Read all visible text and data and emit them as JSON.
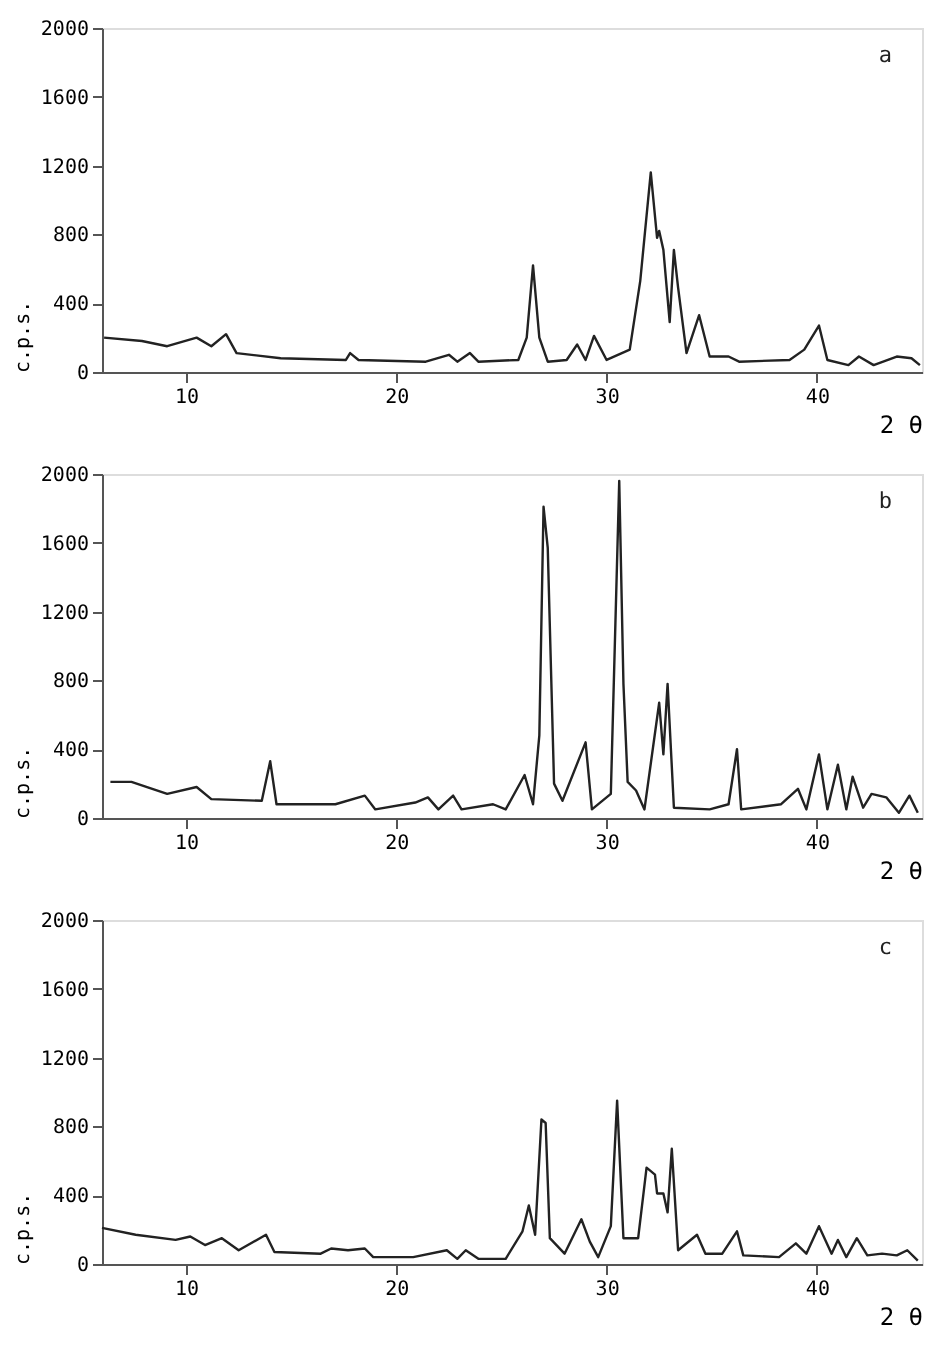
{
  "chart_data": [
    {
      "type": "line",
      "xlabel": "2 θ",
      "ylabel": "c.p.s.",
      "annotations": [
        "a"
      ],
      "xlim": [
        6,
        45
      ],
      "ylim": [
        0,
        2000
      ],
      "xticks": [
        10,
        20,
        30,
        40
      ],
      "yticks": [
        0,
        400,
        800,
        1200,
        1600,
        2000
      ],
      "grid": false,
      "marker": "none",
      "line_style": "solid",
      "series": [
        {
          "color": "#222222",
          "x": [
            6.1,
            7.9,
            9.1,
            10.5,
            11.2,
            11.9,
            12.4,
            14.5,
            17.6,
            17.8,
            18.2,
            21.4,
            22.5,
            22.9,
            23.5,
            23.9,
            25.8,
            26.2,
            26.5,
            26.8,
            27.2,
            28.1,
            28.6,
            29.0,
            29.4,
            30.0,
            31.1,
            31.6,
            32.1,
            32.4,
            32.5,
            32.7,
            33.0,
            33.2,
            33.4,
            33.8,
            34.4,
            34.9,
            35.8,
            36.3,
            38.7,
            39.4,
            40.1,
            40.5,
            41.5,
            42.0,
            42.7,
            43.8,
            44.5,
            44.9
          ],
          "values": [
            200,
            180,
            150,
            200,
            150,
            220,
            110,
            80,
            70,
            110,
            70,
            60,
            100,
            60,
            110,
            60,
            70,
            200,
            620,
            200,
            60,
            70,
            160,
            70,
            210,
            70,
            130,
            530,
            1160,
            780,
            820,
            710,
            290,
            710,
            490,
            110,
            330,
            90,
            90,
            60,
            70,
            130,
            270,
            70,
            40,
            90,
            40,
            90,
            80,
            40
          ]
        }
      ]
    },
    {
      "type": "line",
      "xlabel": "2 θ",
      "ylabel": "c.p.s.",
      "annotations": [
        "b"
      ],
      "xlim": [
        6,
        45
      ],
      "ylim": [
        0,
        2000
      ],
      "xticks": [
        10,
        20,
        30,
        40
      ],
      "yticks": [
        0,
        400,
        800,
        1200,
        1600,
        2000
      ],
      "grid": false,
      "marker": "none",
      "line_style": "solid",
      "series": [
        {
          "color": "#222222",
          "x": [
            6.4,
            7.4,
            9.1,
            10.5,
            11.2,
            13.6,
            14.0,
            14.3,
            17.1,
            18.5,
            19.0,
            20.9,
            21.5,
            22.0,
            22.7,
            23.1,
            24.6,
            25.2,
            26.1,
            26.5,
            26.8,
            27.0,
            27.2,
            27.5,
            27.9,
            29.0,
            29.3,
            30.2,
            30.6,
            30.8,
            31.0,
            31.4,
            31.8,
            32.5,
            32.7,
            32.9,
            33.2,
            34.9,
            35.8,
            36.2,
            36.4,
            38.3,
            39.1,
            39.5,
            40.1,
            40.5,
            41.0,
            41.4,
            41.7,
            42.2,
            42.6,
            43.3,
            43.9,
            44.4,
            44.8
          ],
          "values": [
            210,
            210,
            140,
            180,
            110,
            100,
            330,
            80,
            80,
            130,
            50,
            90,
            120,
            50,
            130,
            50,
            80,
            50,
            250,
            80,
            480,
            1810,
            1570,
            200,
            100,
            440,
            50,
            140,
            1960,
            780,
            210,
            160,
            50,
            670,
            370,
            780,
            60,
            50,
            80,
            400,
            50,
            80,
            170,
            50,
            370,
            50,
            310,
            50,
            240,
            60,
            140,
            120,
            30,
            130,
            30
          ]
        }
      ]
    },
    {
      "type": "line",
      "xlabel": "2 θ",
      "ylabel": "c.p.s.",
      "annotations": [
        "c"
      ],
      "xlim": [
        6,
        45
      ],
      "ylim": [
        0,
        2000
      ],
      "xticks": [
        10,
        20,
        30,
        40
      ],
      "yticks": [
        0,
        400,
        800,
        1200,
        1600,
        2000
      ],
      "grid": false,
      "marker": "none",
      "line_style": "solid",
      "series": [
        {
          "color": "#222222",
          "x": [
            6.0,
            7.6,
            9.5,
            10.2,
            10.9,
            11.7,
            12.5,
            13.8,
            14.2,
            16.4,
            16.9,
            17.7,
            18.5,
            18.9,
            20.8,
            22.4,
            22.9,
            23.3,
            23.9,
            25.2,
            26.0,
            26.3,
            26.6,
            26.9,
            27.1,
            27.3,
            28.0,
            28.8,
            29.2,
            29.6,
            30.2,
            30.5,
            30.8,
            31.5,
            31.9,
            32.3,
            32.4,
            32.7,
            32.9,
            33.1,
            33.4,
            34.3,
            34.7,
            35.5,
            36.2,
            36.5,
            38.2,
            39.0,
            39.5,
            40.1,
            40.7,
            41.0,
            41.4,
            41.9,
            42.4,
            43.1,
            43.8,
            44.3,
            44.8
          ],
          "values": [
            210,
            170,
            140,
            160,
            110,
            150,
            80,
            170,
            70,
            60,
            90,
            80,
            90,
            40,
            40,
            80,
            30,
            80,
            30,
            30,
            190,
            340,
            170,
            840,
            820,
            150,
            60,
            260,
            130,
            40,
            220,
            950,
            150,
            150,
            560,
            520,
            410,
            410,
            300,
            670,
            80,
            170,
            60,
            60,
            190,
            50,
            40,
            120,
            60,
            220,
            60,
            140,
            40,
            150,
            50,
            60,
            50,
            80,
            20
          ]
        }
      ]
    }
  ]
}
